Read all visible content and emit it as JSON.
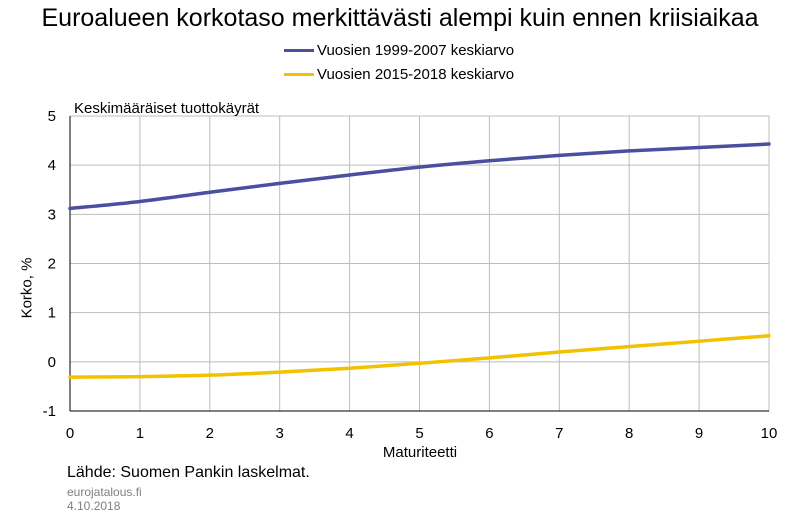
{
  "chart_data": {
    "type": "line",
    "title": "Euroalueen korkotaso merkittävästi alempi kuin ennen kriisiaikaa",
    "subtitle": "Keskimääräiset tuottokäyrät",
    "xlabel": "Maturiteetti",
    "ylabel": "Korko, %",
    "xlim": [
      0,
      10
    ],
    "ylim": [
      -1,
      5
    ],
    "xticks": [
      "0",
      "1",
      "2",
      "3",
      "4",
      "5",
      "6",
      "7",
      "8",
      "9",
      "10"
    ],
    "yticks": [
      "5",
      "4",
      "3",
      "2",
      "1",
      "0",
      "-1"
    ],
    "grid": true,
    "legend_position": "top",
    "x": [
      0,
      1,
      2,
      3,
      4,
      5,
      6,
      7,
      8,
      9,
      10
    ],
    "series": [
      {
        "name": "Vuosien 1999-2007 keskiarvo",
        "color": "#4a4fa0",
        "values": [
          3.12,
          3.26,
          3.45,
          3.63,
          3.8,
          3.96,
          4.09,
          4.2,
          4.29,
          4.36,
          4.43
        ]
      },
      {
        "name": "Vuosien 2015-2018 keskiarvo",
        "color": "#f2c200",
        "values": [
          -0.31,
          -0.3,
          -0.27,
          -0.21,
          -0.13,
          -0.03,
          0.08,
          0.2,
          0.31,
          0.42,
          0.53
        ]
      }
    ],
    "source": "Lähde: Suomen Pankin laskelmat.",
    "publisher": "eurojatalous.fi",
    "date": "4.10.2018"
  }
}
